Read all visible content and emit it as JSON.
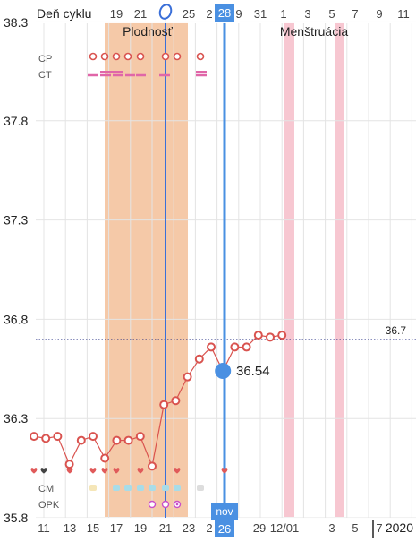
{
  "header": {
    "cycle_label": "Deň cyklu",
    "cycle_days": [
      "19",
      "21",
      "0",
      "25",
      "2",
      "28",
      "9",
      "31",
      "1",
      "3",
      "5",
      "7",
      "9",
      "11"
    ],
    "current_day": "28"
  },
  "footer": {
    "dates": [
      "11",
      "13",
      "15",
      "17",
      "19",
      "21",
      "23",
      "2",
      "26",
      "29",
      "12/01",
      "3",
      "5",
      "7"
    ],
    "current_date": "26",
    "month_badge": "nov",
    "year": "2020"
  },
  "regions": {
    "fertility_label": "Plodnosť",
    "menstruation_label": "Menštruácia"
  },
  "rows": {
    "cp_label": "CP",
    "ct_label": "CT",
    "cm_label": "CM",
    "opk_label": "OPK"
  },
  "selected": {
    "temperature_label": "36.54"
  },
  "coverline": {
    "value": 36.7,
    "label": "36.7"
  },
  "colors": {
    "fertility_band": "#f5c9a8",
    "menstruation_band": "#f2a9b8",
    "temperature_line": "#d9534f",
    "selected_marker": "#4a90e2",
    "ovulation_line": "#3a6fd8",
    "coverline": "#1a237e",
    "heart": "#e05a5a",
    "ct_dash": "#e066a8"
  },
  "chart_data": {
    "type": "line",
    "ylim": [
      35.8,
      38.3
    ],
    "y_ticks": [
      "38.3",
      "37.8",
      "37.3",
      "36.8",
      "36.3",
      "35.8"
    ],
    "temperatures": [
      36.21,
      36.2,
      36.21,
      36.07,
      36.19,
      36.21,
      36.1,
      36.19,
      36.19,
      36.21,
      36.06,
      36.37,
      36.39,
      36.51,
      36.6,
      36.66,
      36.54,
      36.66,
      36.66,
      36.72,
      36.71,
      36.72
    ],
    "selected_index": 16
  }
}
